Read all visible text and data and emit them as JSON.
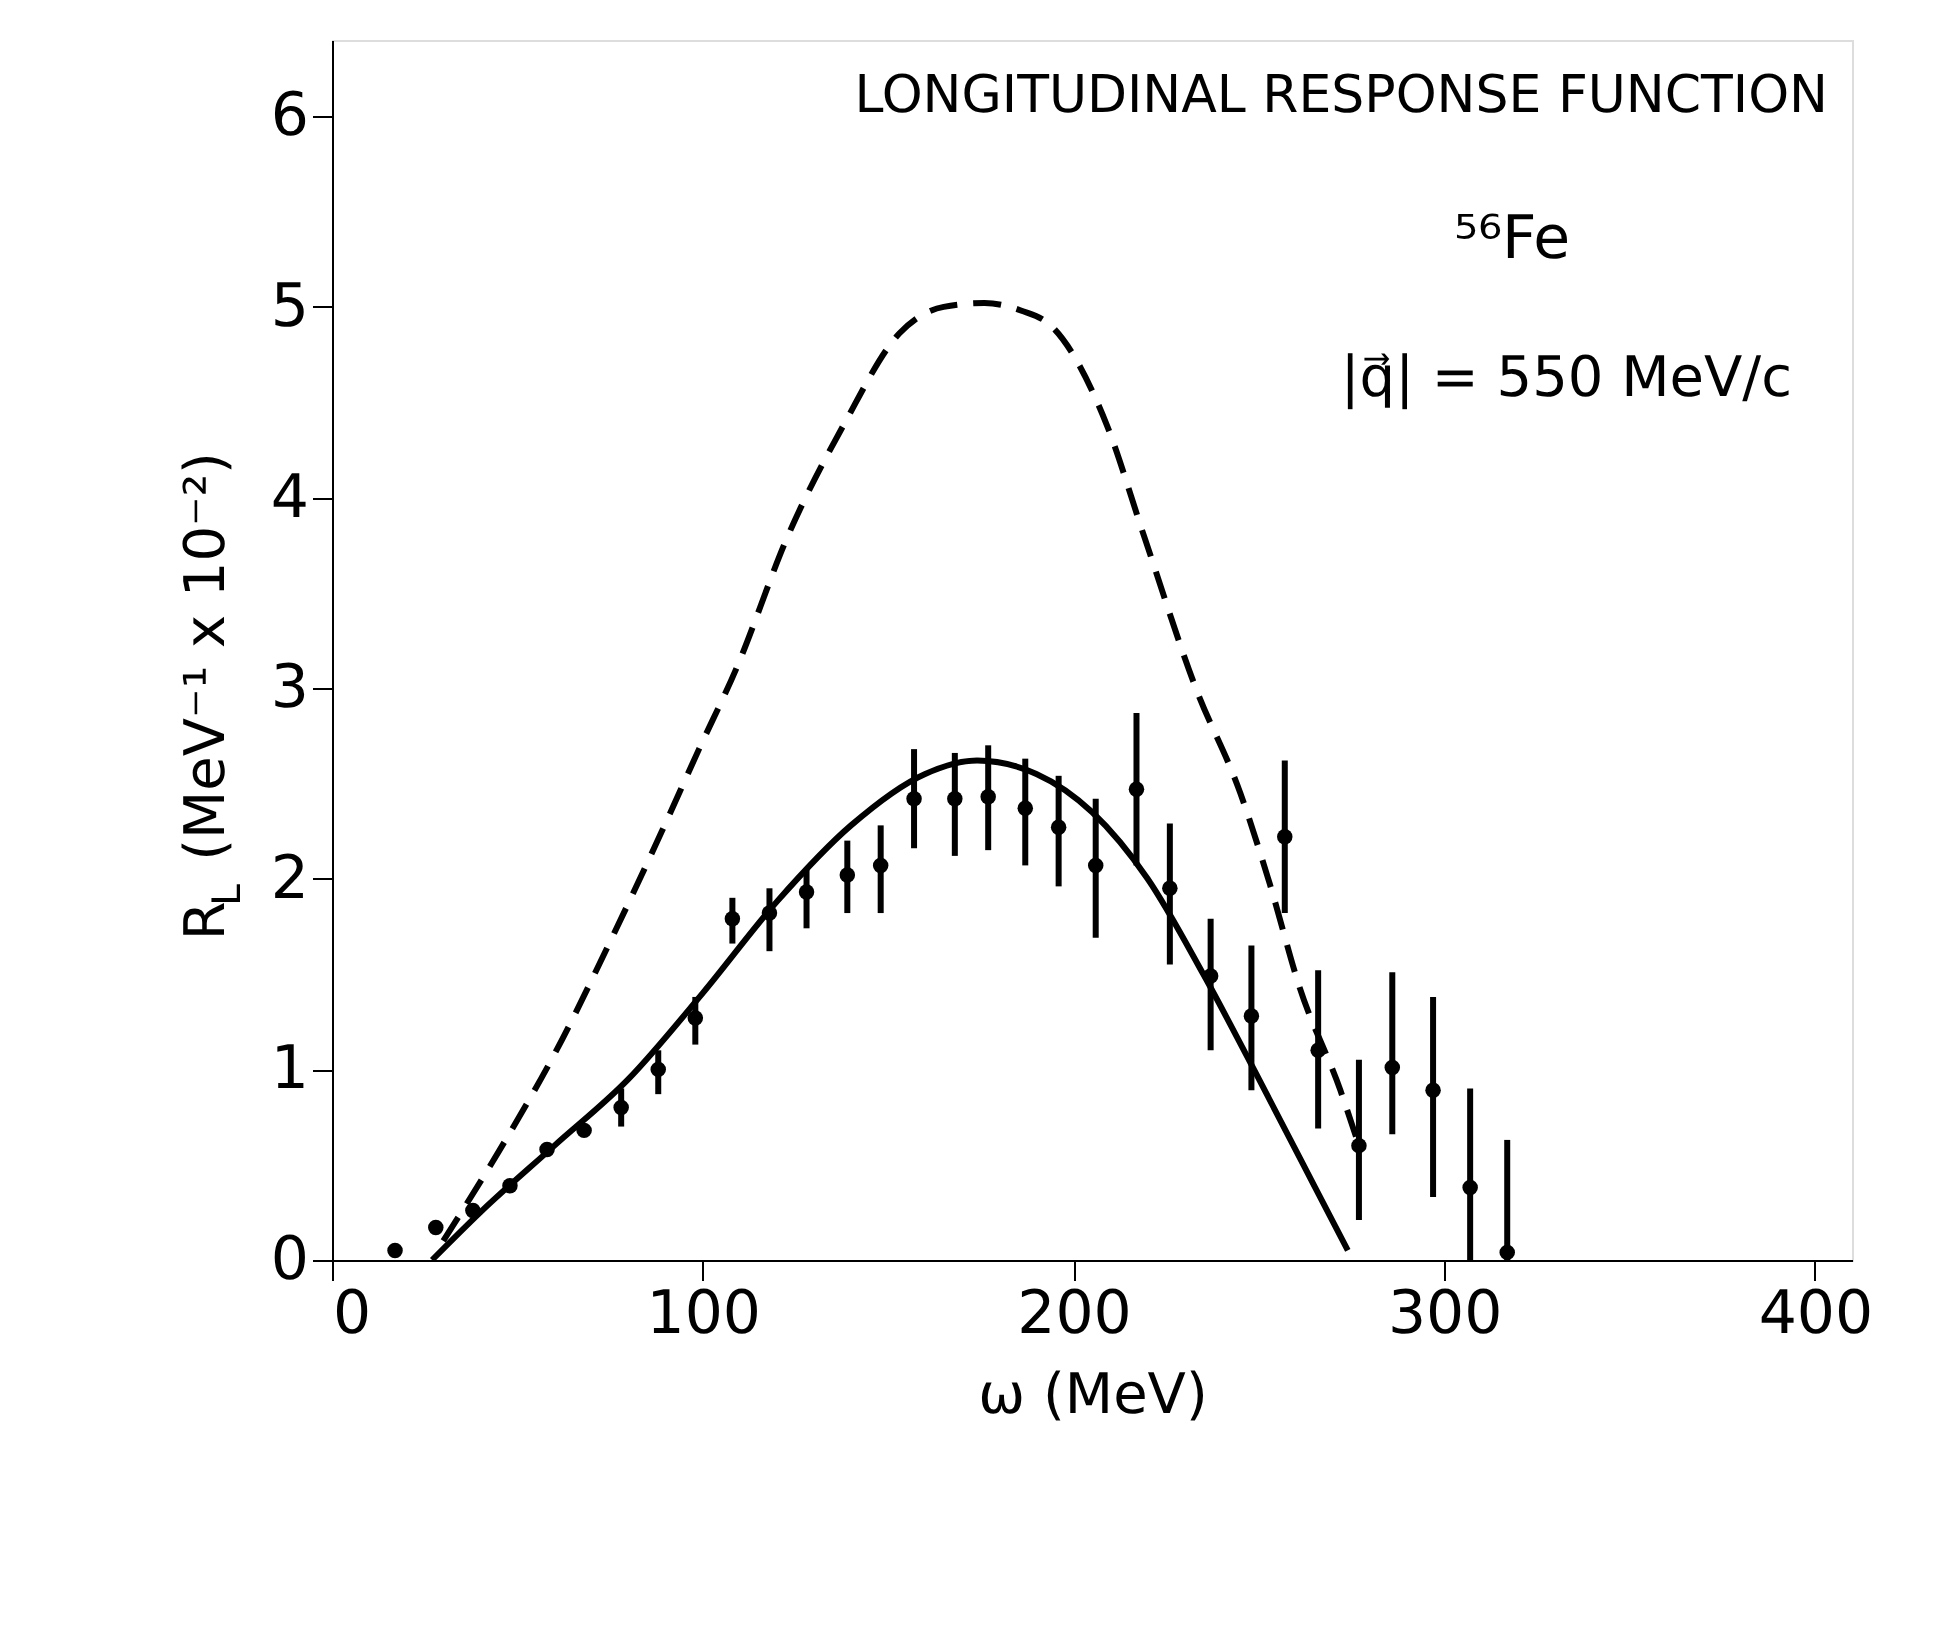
{
  "chart_data": {
    "type": "scatter",
    "xlabel": "ω (MeV)",
    "ylabel": "R$_{L}$ (MeV⁻¹ x 10⁻²)",
    "xlim": [
      0,
      410
    ],
    "xticks": [
      0,
      100,
      200,
      300,
      400
    ],
    "ylim": [
      0,
      6.4
    ],
    "yticks": [
      0,
      1,
      2,
      3,
      4,
      5,
      6
    ],
    "grid": false,
    "annotations": [
      "LONGITUDINAL RESPONSE FUNCTION",
      "⁵⁶Fe",
      "|q⃗| = 550 MeV/c"
    ],
    "series": [
      {
        "color": "#000000",
        "marker": "circle",
        "x": [
          17,
          28,
          38,
          48,
          58,
          68,
          78,
          88,
          98,
          108,
          118,
          128,
          139,
          148,
          157,
          168,
          177,
          187,
          196,
          206,
          217,
          226,
          237,
          248,
          257,
          266,
          277,
          286,
          297,
          307,
          317
        ],
        "values": [
          0.05,
          0.17,
          0.26,
          0.39,
          0.58,
          0.68,
          0.8,
          1.0,
          1.27,
          1.79,
          1.82,
          1.93,
          2.02,
          2.07,
          2.42,
          2.42,
          2.43,
          2.37,
          2.27,
          2.07,
          2.47,
          1.95,
          1.49,
          1.28,
          2.22,
          1.1,
          0.6,
          1.01,
          0.89,
          0.38,
          0.04
        ],
        "errors": [
          null,
          null,
          null,
          null,
          null,
          null,
          [
            0.7,
            0.9
          ],
          [
            0.87,
            1.1
          ],
          [
            1.13,
            1.38
          ],
          [
            1.66,
            1.9
          ],
          [
            1.62,
            1.95
          ],
          [
            1.74,
            2.05
          ],
          [
            1.82,
            2.2
          ],
          [
            1.82,
            2.28
          ],
          [
            2.16,
            2.68
          ],
          [
            2.12,
            2.66
          ],
          [
            2.15,
            2.7
          ],
          [
            2.07,
            2.63
          ],
          [
            1.96,
            2.54
          ],
          [
            1.69,
            2.42
          ],
          [
            2.07,
            2.87
          ],
          [
            1.55,
            2.29
          ],
          [
            1.1,
            1.79
          ],
          [
            0.89,
            1.65
          ],
          [
            1.82,
            2.62
          ],
          [
            0.69,
            1.52
          ],
          [
            0.21,
            1.05
          ],
          [
            0.66,
            1.51
          ],
          [
            0.33,
            1.38
          ],
          [
            0,
            0.9
          ],
          [
            0,
            0.63
          ]
        ]
      },
      {
        "type": "line",
        "color": "#000000",
        "line_style": "solid",
        "x": [
          27,
          40,
          60,
          80,
          100,
          120,
          140,
          160,
          174,
          190,
          205,
          220,
          235,
          250,
          262,
          274
        ],
        "values": [
          0,
          0.25,
          0.6,
          0.95,
          1.4,
          1.88,
          2.28,
          2.55,
          2.62,
          2.55,
          2.35,
          2.0,
          1.5,
          0.95,
          0.5,
          0.05
        ]
      },
      {
        "type": "line",
        "color": "#000000",
        "line_style": "dashed",
        "x": [
          30,
          45,
          60,
          76,
          89,
          99,
          109,
          123,
          138,
          153,
          165,
          176,
          186,
          194,
          209,
          219,
          233,
          245,
          253,
          261,
          272,
          277
        ],
        "values": [
          0.1,
          0.57,
          1.08,
          1.71,
          2.25,
          2.68,
          3.1,
          3.8,
          4.38,
          4.86,
          5.0,
          5.02,
          4.98,
          4.9,
          4.38,
          3.8,
          3.0,
          2.45,
          1.97,
          1.43,
          0.89,
          0.6
        ]
      }
    ]
  }
}
